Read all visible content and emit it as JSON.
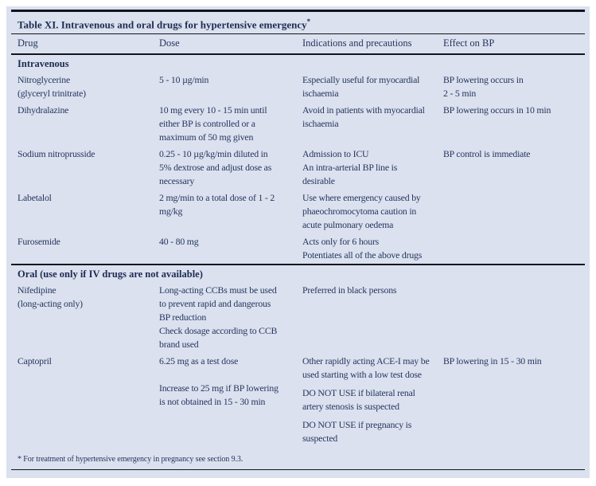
{
  "colors": {
    "page_background": "#ffffff",
    "table_background": "#dbe1ee",
    "text": "#263560",
    "text_strong": "#1d2b52",
    "rule": "#11151f"
  },
  "table": {
    "title": "Table XI. Intravenous and oral drugs for hypertensive emergency",
    "title_note_marker": "*",
    "columns": [
      "Drug",
      "Dose",
      "Indications and precautions",
      "Effect on BP"
    ],
    "sections": [
      {
        "label": "Intravenous",
        "rows": [
          {
            "drug": [
              "Nitroglycerine\n(glyceryl trinitrate)"
            ],
            "dose": [
              "5 - 10 µg/min"
            ],
            "indications": [
              "Especially useful for myocardial\nischaemia"
            ],
            "effect": [
              "BP lowering occurs in\n2 - 5 min"
            ]
          },
          {
            "drug": [
              "Dihydralazine"
            ],
            "dose": [
              "10 mg every 10 - 15 min until\neither BP is controlled or a\nmaximum of 50 mg given"
            ],
            "indications": [
              "Avoid in patients with myocardial\nischaemia"
            ],
            "effect": [
              "BP lowering occurs in 10 min"
            ]
          },
          {
            "drug": [
              "Sodium nitroprusside"
            ],
            "dose": [
              "0.25 - 10 µg/kg/min diluted in\n5% dextrose and adjust dose as\nnecessary"
            ],
            "indications": [
              "Admission to ICU\nAn intra-arterial BP line is\ndesirable"
            ],
            "effect": [
              "BP control is immediate"
            ]
          },
          {
            "drug": [
              "Labetalol"
            ],
            "dose": [
              "2 mg/min to a total dose of 1 - 2\nmg/kg"
            ],
            "indications": [
              "Use where emergency caused by\nphaeochromocytoma caution in\nacute pulmonary oedema"
            ],
            "effect": []
          },
          {
            "drug": [
              "Furosemide"
            ],
            "dose": [
              "40 - 80 mg"
            ],
            "indications": [
              "Acts only for 6 hours\nPotentiates all of the above drugs"
            ],
            "effect": []
          }
        ]
      },
      {
        "label": "Oral (use only if IV drugs are not available)",
        "rows": [
          {
            "drug": [
              "Nifedipine\n(long-acting only)"
            ],
            "dose": [
              "Long-acting CCBs must be used\nto prevent rapid and dangerous\nBP reduction\nCheck dosage according to CCB\nbrand used"
            ],
            "indications": [
              "Preferred in black persons"
            ],
            "effect": []
          },
          {
            "drug": [
              "Captopril"
            ],
            "dose": [
              "6.25 mg as a test dose\n\nIncrease to 25 mg if BP lowering\nis not obtained in 15 - 30 min"
            ],
            "indications": [
              "Other rapidly acting ACE-I may be\nused starting with a low test dose",
              "DO NOT USE if bilateral renal\nartery stenosis is suspected",
              "DO NOT USE if pregnancy is\nsuspected"
            ],
            "effect": [
              "BP lowering in 15 - 30 min"
            ]
          }
        ]
      }
    ],
    "footnote": "* For treatment of hypertensive emergency in pregnancy see section 9.3."
  }
}
